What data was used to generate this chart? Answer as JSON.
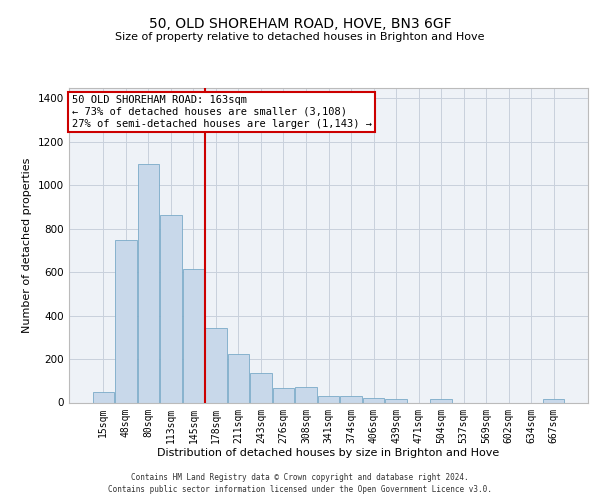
{
  "title": "50, OLD SHOREHAM ROAD, HOVE, BN3 6GF",
  "subtitle": "Size of property relative to detached houses in Brighton and Hove",
  "xlabel": "Distribution of detached houses by size in Brighton and Hove",
  "ylabel": "Number of detached properties",
  "bar_labels": [
    "15sqm",
    "48sqm",
    "80sqm",
    "113sqm",
    "145sqm",
    "178sqm",
    "211sqm",
    "243sqm",
    "276sqm",
    "308sqm",
    "341sqm",
    "374sqm",
    "406sqm",
    "439sqm",
    "471sqm",
    "504sqm",
    "537sqm",
    "569sqm",
    "602sqm",
    "634sqm",
    "667sqm"
  ],
  "bar_values": [
    50,
    750,
    1100,
    865,
    615,
    345,
    225,
    135,
    65,
    70,
    32,
    32,
    22,
    15,
    0,
    15,
    0,
    0,
    0,
    0,
    15
  ],
  "bar_color": "#c8d8ea",
  "bar_edgecolor": "#7aaac8",
  "vline_color": "#cc0000",
  "vline_x_idx": 4,
  "annotation_line1": "50 OLD SHOREHAM ROAD: 163sqm",
  "annotation_line2": "← 73% of detached houses are smaller (3,108)",
  "annotation_line3": "27% of semi-detached houses are larger (1,143) →",
  "annotation_box_edgecolor": "#cc0000",
  "ylim": [
    0,
    1450
  ],
  "yticks": [
    0,
    200,
    400,
    600,
    800,
    1000,
    1200,
    1400
  ],
  "footer_line1": "Contains HM Land Registry data © Crown copyright and database right 2024.",
  "footer_line2": "Contains public sector information licensed under the Open Government Licence v3.0.",
  "bg_color": "#eef2f7",
  "grid_color": "#c8d0dc",
  "title_fontsize": 10,
  "subtitle_fontsize": 8,
  "ylabel_fontsize": 8,
  "xlabel_fontsize": 8,
  "tick_fontsize": 7,
  "annotation_fontsize": 7.5
}
